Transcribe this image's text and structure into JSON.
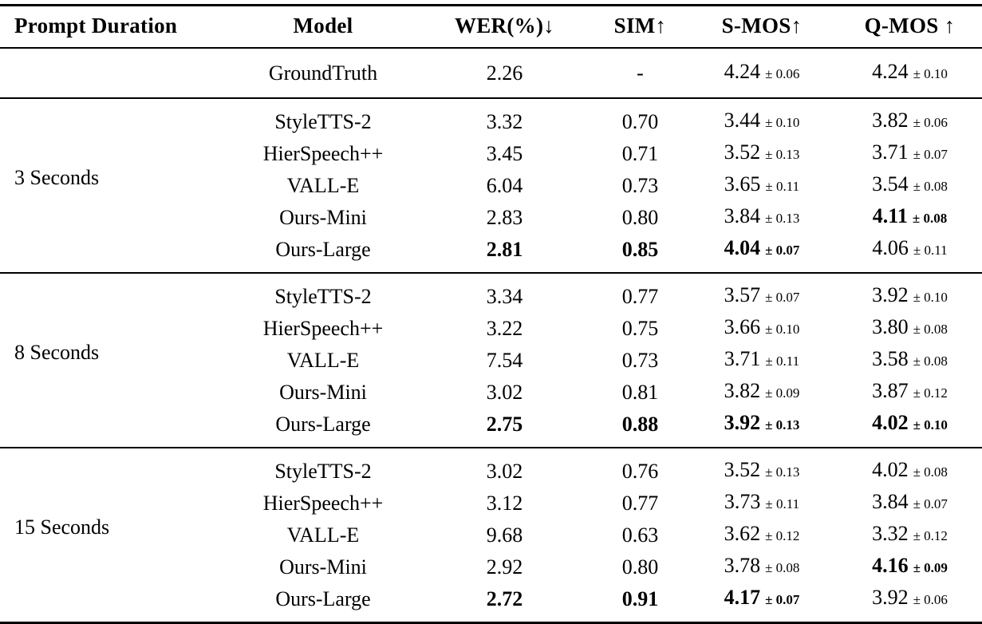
{
  "table": {
    "headers": [
      {
        "key": "duration",
        "label": "Prompt Duration"
      },
      {
        "key": "model",
        "label": "Model"
      },
      {
        "key": "wer",
        "label": "WER(%)↓"
      },
      {
        "key": "sim",
        "label": "SIM↑"
      },
      {
        "key": "smos",
        "label": "S-MOS↑"
      },
      {
        "key": "qmos",
        "label": "Q-MOS ↑"
      }
    ],
    "groups": [
      {
        "duration": "",
        "rows": [
          {
            "model": "GroundTruth",
            "wer": {
              "v": "2.26",
              "b": false
            },
            "sim": {
              "v": "-",
              "b": false
            },
            "smos": {
              "v": "4.24",
              "pm": "± 0.06",
              "b": false
            },
            "qmos": {
              "v": "4.24",
              "pm": "± 0.10",
              "b": false
            }
          }
        ]
      },
      {
        "duration": "3 Seconds",
        "rows": [
          {
            "model": "StyleTTS-2",
            "wer": {
              "v": "3.32",
              "b": false
            },
            "sim": {
              "v": "0.70",
              "b": false
            },
            "smos": {
              "v": "3.44",
              "pm": "± 0.10",
              "b": false
            },
            "qmos": {
              "v": "3.82",
              "pm": "± 0.06",
              "b": false
            }
          },
          {
            "model": "HierSpeech++",
            "wer": {
              "v": "3.45",
              "b": false
            },
            "sim": {
              "v": "0.71",
              "b": false
            },
            "smos": {
              "v": "3.52",
              "pm": "± 0.13",
              "b": false
            },
            "qmos": {
              "v": "3.71",
              "pm": "± 0.07",
              "b": false
            }
          },
          {
            "model": "VALL-E",
            "wer": {
              "v": "6.04",
              "b": false
            },
            "sim": {
              "v": "0.73",
              "b": false
            },
            "smos": {
              "v": "3.65",
              "pm": "± 0.11",
              "b": false
            },
            "qmos": {
              "v": "3.54",
              "pm": "± 0.08",
              "b": false
            }
          },
          {
            "model": "Ours-Mini",
            "wer": {
              "v": "2.83",
              "b": false
            },
            "sim": {
              "v": "0.80",
              "b": false
            },
            "smos": {
              "v": "3.84",
              "pm": "± 0.13",
              "b": false
            },
            "qmos": {
              "v": "4.11",
              "pm": "± 0.08",
              "b": true
            }
          },
          {
            "model": "Ours-Large",
            "wer": {
              "v": "2.81",
              "b": true
            },
            "sim": {
              "v": "0.85",
              "b": true
            },
            "smos": {
              "v": "4.04",
              "pm": "± 0.07",
              "b": true
            },
            "qmos": {
              "v": "4.06",
              "pm": "± 0.11",
              "b": false
            }
          }
        ]
      },
      {
        "duration": "8 Seconds",
        "rows": [
          {
            "model": "StyleTTS-2",
            "wer": {
              "v": "3.34",
              "b": false
            },
            "sim": {
              "v": "0.77",
              "b": false
            },
            "smos": {
              "v": "3.57",
              "pm": "± 0.07",
              "b": false
            },
            "qmos": {
              "v": "3.92",
              "pm": "± 0.10",
              "b": false
            }
          },
          {
            "model": "HierSpeech++",
            "wer": {
              "v": "3.22",
              "b": false
            },
            "sim": {
              "v": "0.75",
              "b": false
            },
            "smos": {
              "v": "3.66",
              "pm": "± 0.10",
              "b": false
            },
            "qmos": {
              "v": "3.80",
              "pm": "± 0.08",
              "b": false
            }
          },
          {
            "model": "VALL-E",
            "wer": {
              "v": "7.54",
              "b": false
            },
            "sim": {
              "v": "0.73",
              "b": false
            },
            "smos": {
              "v": "3.71",
              "pm": "± 0.11",
              "b": false
            },
            "qmos": {
              "v": "3.58",
              "pm": "± 0.08",
              "b": false
            }
          },
          {
            "model": "Ours-Mini",
            "wer": {
              "v": "3.02",
              "b": false
            },
            "sim": {
              "v": "0.81",
              "b": false
            },
            "smos": {
              "v": "3.82",
              "pm": "± 0.09",
              "b": false
            },
            "qmos": {
              "v": "3.87",
              "pm": "± 0.12",
              "b": false
            }
          },
          {
            "model": "Ours-Large",
            "wer": {
              "v": "2.75",
              "b": true
            },
            "sim": {
              "v": "0.88",
              "b": true
            },
            "smos": {
              "v": "3.92",
              "pm": "± 0.13",
              "b": true
            },
            "qmos": {
              "v": "4.02",
              "pm": "± 0.10",
              "b": true
            }
          }
        ]
      },
      {
        "duration": "15 Seconds",
        "rows": [
          {
            "model": "StyleTTS-2",
            "wer": {
              "v": "3.02",
              "b": false
            },
            "sim": {
              "v": "0.76",
              "b": false
            },
            "smos": {
              "v": "3.52",
              "pm": "± 0.13",
              "b": false
            },
            "qmos": {
              "v": "4.02",
              "pm": "± 0.08",
              "b": false
            }
          },
          {
            "model": "HierSpeech++",
            "wer": {
              "v": "3.12",
              "b": false
            },
            "sim": {
              "v": "0.77",
              "b": false
            },
            "smos": {
              "v": "3.73",
              "pm": "± 0.11",
              "b": false
            },
            "qmos": {
              "v": "3.84",
              "pm": "± 0.07",
              "b": false
            }
          },
          {
            "model": "VALL-E",
            "wer": {
              "v": "9.68",
              "b": false
            },
            "sim": {
              "v": "0.63",
              "b": false
            },
            "smos": {
              "v": "3.62",
              "pm": "± 0.12",
              "b": false
            },
            "qmos": {
              "v": "3.32",
              "pm": "± 0.12",
              "b": false
            }
          },
          {
            "model": "Ours-Mini",
            "wer": {
              "v": "2.92",
              "b": false
            },
            "sim": {
              "v": "0.80",
              "b": false
            },
            "smos": {
              "v": "3.78",
              "pm": "± 0.08",
              "b": false
            },
            "qmos": {
              "v": "4.16",
              "pm": "± 0.09",
              "b": true
            }
          },
          {
            "model": "Ours-Large",
            "wer": {
              "v": "2.72",
              "b": true
            },
            "sim": {
              "v": "0.91",
              "b": true
            },
            "smos": {
              "v": "4.17",
              "pm": "± 0.07",
              "b": true
            },
            "qmos": {
              "v": "3.92",
              "pm": "± 0.06",
              "b": false
            }
          }
        ]
      }
    ]
  }
}
